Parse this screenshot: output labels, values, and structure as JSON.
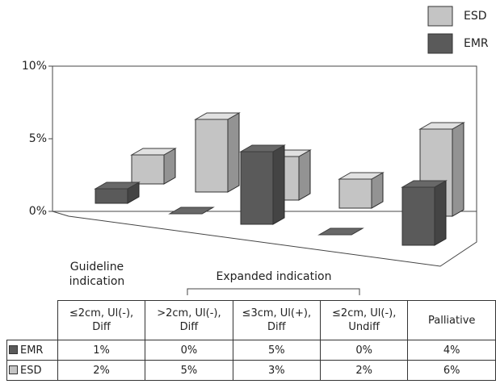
{
  "chart_data": {
    "type": "bar3d",
    "categories": [
      "≤2cm, Ul(-), Diff",
      ">2cm, Ul(-), Diff",
      "≤3cm, Ul(+), Diff",
      "≤2cm, Ul(-), Undiff",
      "Palliative"
    ],
    "series": [
      {
        "name": "EMR",
        "color": "#5a5a5a",
        "values": [
          1,
          0,
          5,
          0,
          4
        ],
        "value_labels": [
          "1%",
          "0%",
          "5%",
          "0%",
          "4%"
        ]
      },
      {
        "name": "ESD",
        "color": "#c4c4c4",
        "values": [
          2,
          5,
          3,
          2,
          6
        ],
        "value_labels": [
          "2%",
          "5%",
          "3%",
          "2%",
          "6%"
        ]
      }
    ],
    "ylim": [
      0,
      10
    ],
    "yticks": [
      {
        "value": 0,
        "label": "0%"
      },
      {
        "value": 5,
        "label": "5%"
      },
      {
        "value": 10,
        "label": "10%"
      }
    ],
    "annotations": [
      "Guideline indication",
      "Expanded indication"
    ]
  }
}
